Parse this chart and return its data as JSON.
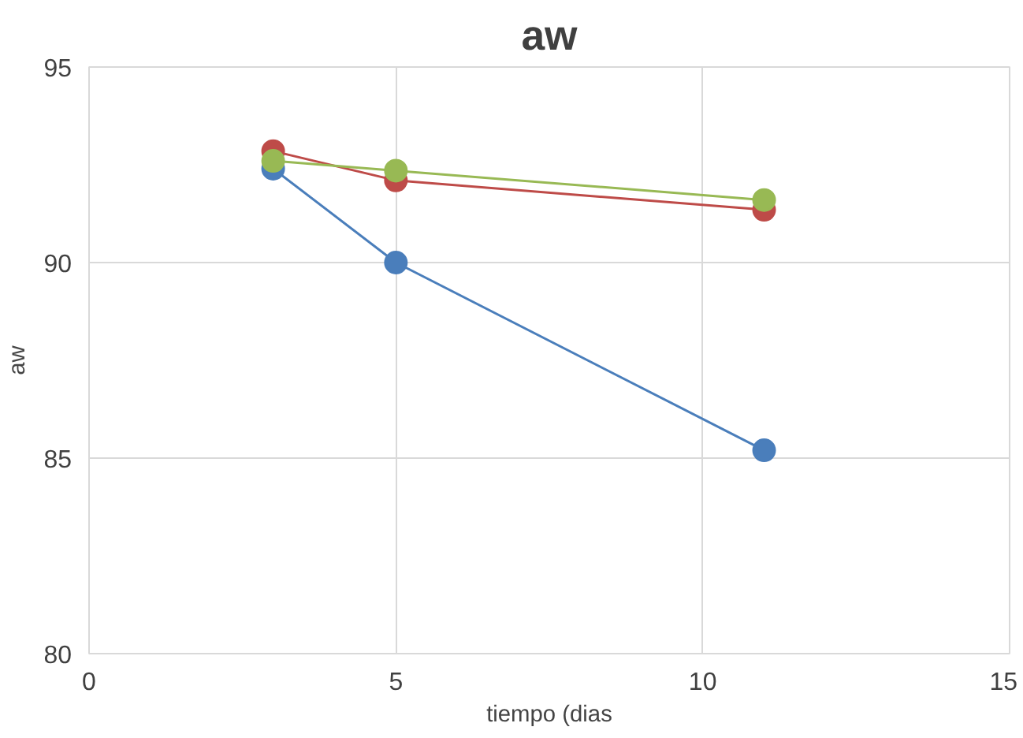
{
  "chart_data": {
    "type": "line",
    "title": "aw",
    "xlabel": "tiempo (dias",
    "ylabel": "aw",
    "x": [
      3,
      5,
      11
    ],
    "series": [
      {
        "color": "#4a7ebb",
        "values": [
          92.4,
          90.0,
          85.2
        ]
      },
      {
        "color": "#be4b48",
        "values": [
          92.85,
          92.1,
          91.35
        ]
      },
      {
        "color": "#98b954",
        "values": [
          92.6,
          92.35,
          91.6
        ]
      }
    ],
    "xlim": [
      0,
      15
    ],
    "xticks": [
      0,
      5,
      10,
      15
    ],
    "ylim": [
      80,
      95
    ],
    "yticks": [
      80,
      85,
      90,
      95
    ],
    "grid": true,
    "marker": "circle",
    "line_style": "solid"
  }
}
